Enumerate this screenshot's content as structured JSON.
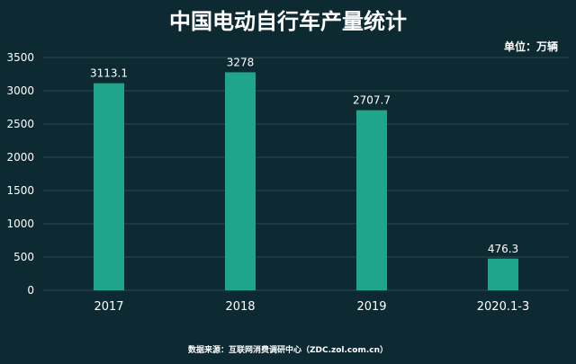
{
  "chart_data": {
    "type": "bar",
    "title": "中国电动自行车产量统计",
    "unit_label": "单位：万辆",
    "categories": [
      "2017",
      "2018",
      "2019",
      "2020.1-3"
    ],
    "values": [
      3113.1,
      3278,
      2707.7,
      476.3
    ],
    "value_labels": [
      "3113.1",
      "3278",
      "2707.7",
      "476.3"
    ],
    "yticks": [
      0,
      500,
      1000,
      1500,
      2000,
      2500,
      3000,
      3500
    ],
    "ylim": [
      0,
      3500
    ],
    "grid": true,
    "bar_color": "#1fa58a",
    "source_note": "数据来源：互联网消费调研中心（ZDC.zol.com.cn）"
  },
  "colors": {
    "background": "#0d2a33",
    "grid": "#2c4a52",
    "text": "#ffffff"
  }
}
